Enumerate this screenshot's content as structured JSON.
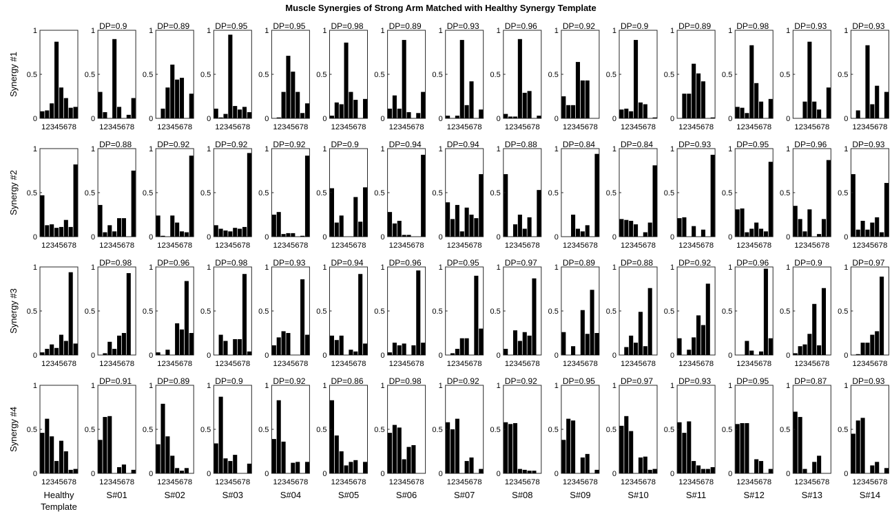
{
  "chart_data": {
    "type": "bar",
    "title": "Muscle Synergies of Strong Arm Matched with Healthy Synergy Template",
    "ylim": [
      0,
      1
    ],
    "yticks": [
      "0",
      "0.5",
      "1"
    ],
    "xtick_label": "12345678",
    "categories": [
      "1",
      "2",
      "3",
      "4",
      "5",
      "6",
      "7",
      "8"
    ],
    "rows": [
      "Synergy #1",
      "Synergy #2",
      "Synergy #3",
      "Synergy #4"
    ],
    "columns": [
      {
        "label_lines": [
          "Healthy",
          "Template"
        ]
      },
      {
        "label_lines": [
          "S#01"
        ]
      },
      {
        "label_lines": [
          "S#02"
        ]
      },
      {
        "label_lines": [
          "S#03"
        ]
      },
      {
        "label_lines": [
          "S#04"
        ]
      },
      {
        "label_lines": [
          "S#05"
        ]
      },
      {
        "label_lines": [
          "S#06"
        ]
      },
      {
        "label_lines": [
          "S#07"
        ]
      },
      {
        "label_lines": [
          "S#08"
        ]
      },
      {
        "label_lines": [
          "S#09"
        ]
      },
      {
        "label_lines": [
          "S#10"
        ]
      },
      {
        "label_lines": [
          "S#11"
        ]
      },
      {
        "label_lines": [
          "S#12"
        ]
      },
      {
        "label_lines": [
          "S#13"
        ]
      },
      {
        "label_lines": [
          "S#14"
        ]
      }
    ],
    "dp": [
      [
        "",
        "DP=0.9",
        "DP=0.89",
        "DP=0.95",
        "DP=0.95",
        "DP=0.98",
        "DP=0.89",
        "DP=0.93",
        "DP=0.96",
        "DP=0.92",
        "DP=0.9",
        "DP=0.89",
        "DP=0.98",
        "DP=0.93",
        "DP=0.93"
      ],
      [
        "",
        "DP=0.88",
        "DP=0.92",
        "DP=0.92",
        "DP=0.92",
        "DP=0.9",
        "DP=0.94",
        "DP=0.94",
        "DP=0.88",
        "DP=0.84",
        "DP=0.84",
        "DP=0.93",
        "DP=0.95",
        "DP=0.96",
        "DP=0.93"
      ],
      [
        "",
        "DP=0.98",
        "DP=0.96",
        "DP=0.98",
        "DP=0.93",
        "DP=0.94",
        "DP=0.96",
        "DP=0.95",
        "DP=0.97",
        "DP=0.89",
        "DP=0.88",
        "DP=0.92",
        "DP=0.96",
        "DP=0.9",
        "DP=0.97"
      ],
      [
        "",
        "DP=0.91",
        "DP=0.89",
        "DP=0.9",
        "DP=0.92",
        "DP=0.86",
        "DP=0.98",
        "DP=0.92",
        "DP=0.92",
        "DP=0.95",
        "DP=0.97",
        "DP=0.93",
        "DP=0.95",
        "DP=0.87",
        "DP=0.93"
      ]
    ],
    "values": [
      [
        [
          0.08,
          0.09,
          0.17,
          0.87,
          0.35,
          0.23,
          0.12,
          0.13
        ],
        [
          0.3,
          0.07,
          0.0,
          0.9,
          0.13,
          0.0,
          0.04,
          0.23
        ],
        [
          0.0,
          0.11,
          0.35,
          0.61,
          0.44,
          0.46,
          0.0,
          0.28
        ],
        [
          0.11,
          0.01,
          0.05,
          0.95,
          0.14,
          0.1,
          0.13,
          0.07
        ],
        [
          0.0,
          0.01,
          0.3,
          0.71,
          0.53,
          0.3,
          0.06,
          0.17
        ],
        [
          0.03,
          0.18,
          0.16,
          0.86,
          0.3,
          0.21,
          0.0,
          0.22
        ],
        [
          0.11,
          0.26,
          0.11,
          0.89,
          0.07,
          0.0,
          0.06,
          0.3
        ],
        [
          0.03,
          0.0,
          0.03,
          0.89,
          0.15,
          0.42,
          0.0,
          0.1
        ],
        [
          0.05,
          0.02,
          0.02,
          0.9,
          0.29,
          0.31,
          0.0,
          0.03
        ],
        [
          0.25,
          0.15,
          0.15,
          0.64,
          0.43,
          0.43,
          0.0,
          0.0
        ],
        [
          0.1,
          0.11,
          0.08,
          0.89,
          0.18,
          0.16,
          0.0,
          0.01
        ],
        [
          0.0,
          0.28,
          0.28,
          0.62,
          0.51,
          0.42,
          0.0,
          0.01
        ],
        [
          0.13,
          0.12,
          0.06,
          0.83,
          0.4,
          0.19,
          0.0,
          0.22
        ],
        [
          0.0,
          0.0,
          0.19,
          0.87,
          0.19,
          0.1,
          0.0,
          0.35
        ],
        [
          0.0,
          0.09,
          0.0,
          0.83,
          0.16,
          0.37,
          0.0,
          0.3
        ]
      ],
      [
        [
          0.47,
          0.13,
          0.14,
          0.1,
          0.11,
          0.19,
          0.11,
          0.82
        ],
        [
          0.36,
          0.05,
          0.13,
          0.06,
          0.21,
          0.21,
          0.0,
          0.75
        ],
        [
          0.24,
          0.01,
          0.0,
          0.24,
          0.16,
          0.06,
          0.05,
          0.92
        ],
        [
          0.13,
          0.09,
          0.07,
          0.06,
          0.1,
          0.09,
          0.11,
          0.95
        ],
        [
          0.25,
          0.28,
          0.03,
          0.04,
          0.04,
          0.0,
          0.01,
          0.92
        ],
        [
          0.55,
          0.16,
          0.24,
          0.0,
          0.0,
          0.45,
          0.17,
          0.56
        ],
        [
          0.28,
          0.15,
          0.18,
          0.02,
          0.02,
          0.0,
          0.0,
          0.93
        ],
        [
          0.39,
          0.2,
          0.36,
          0.06,
          0.33,
          0.25,
          0.21,
          0.71
        ],
        [
          0.71,
          0.0,
          0.14,
          0.25,
          0.09,
          0.22,
          0.0,
          0.53
        ],
        [
          0.0,
          0.0,
          0.25,
          0.09,
          0.06,
          0.13,
          0.0,
          0.94
        ],
        [
          0.2,
          0.19,
          0.18,
          0.14,
          0.0,
          0.05,
          0.16,
          0.81
        ],
        [
          0.21,
          0.22,
          0.0,
          0.12,
          0.0,
          0.08,
          0.0,
          0.93
        ],
        [
          0.31,
          0.32,
          0.05,
          0.09,
          0.16,
          0.09,
          0.06,
          0.85
        ],
        [
          0.35,
          0.2,
          0.06,
          0.31,
          0.0,
          0.03,
          0.2,
          0.87
        ],
        [
          0.71,
          0.08,
          0.18,
          0.08,
          0.16,
          0.22,
          0.05,
          0.61
        ]
      ],
      [
        [
          0.03,
          0.07,
          0.12,
          0.08,
          0.23,
          0.16,
          0.94,
          0.13
        ],
        [
          0.0,
          0.02,
          0.15,
          0.07,
          0.22,
          0.25,
          0.93,
          0.0
        ],
        [
          0.03,
          0.0,
          0.06,
          0.0,
          0.36,
          0.29,
          0.84,
          0.25
        ],
        [
          0.0,
          0.23,
          0.16,
          0.0,
          0.18,
          0.18,
          0.92,
          0.04
        ],
        [
          0.11,
          0.2,
          0.27,
          0.25,
          0.0,
          0.0,
          0.86,
          0.23
        ],
        [
          0.22,
          0.17,
          0.22,
          0.0,
          0.06,
          0.04,
          0.92,
          0.13
        ],
        [
          0.03,
          0.14,
          0.11,
          0.13,
          0.0,
          0.11,
          0.96,
          0.14
        ],
        [
          0.0,
          0.02,
          0.07,
          0.19,
          0.19,
          0.0,
          0.9,
          0.3
        ],
        [
          0.07,
          0.0,
          0.28,
          0.16,
          0.26,
          0.22,
          0.87,
          0.0
        ],
        [
          0.26,
          0.0,
          0.1,
          0.0,
          0.51,
          0.24,
          0.74,
          0.25
        ],
        [
          0.0,
          0.09,
          0.22,
          0.14,
          0.49,
          0.1,
          0.76,
          0.0
        ],
        [
          0.19,
          0.0,
          0.06,
          0.2,
          0.45,
          0.34,
          0.81,
          0.0
        ],
        [
          0.0,
          0.0,
          0.16,
          0.05,
          0.0,
          0.04,
          0.98,
          0.19
        ],
        [
          0.02,
          0.1,
          0.12,
          0.24,
          0.58,
          0.11,
          0.76,
          0.0
        ],
        [
          0.0,
          0.01,
          0.14,
          0.14,
          0.23,
          0.27,
          0.89,
          0.0
        ]
      ],
      [
        [
          0.46,
          0.62,
          0.42,
          0.14,
          0.37,
          0.25,
          0.04,
          0.05
        ],
        [
          0.38,
          0.64,
          0.65,
          0.0,
          0.07,
          0.1,
          0.0,
          0.04
        ],
        [
          0.33,
          0.79,
          0.42,
          0.2,
          0.06,
          0.03,
          0.06,
          0.0
        ],
        [
          0.34,
          0.87,
          0.17,
          0.14,
          0.21,
          0.0,
          0.0,
          0.11
        ],
        [
          0.39,
          0.83,
          0.36,
          0.0,
          0.12,
          0.13,
          0.0,
          0.13
        ],
        [
          0.83,
          0.43,
          0.25,
          0.09,
          0.13,
          0.15,
          0.0,
          0.13
        ],
        [
          0.46,
          0.55,
          0.52,
          0.16,
          0.3,
          0.32,
          0.0,
          0.0
        ],
        [
          0.58,
          0.5,
          0.62,
          0.0,
          0.14,
          0.18,
          0.0,
          0.05
        ],
        [
          0.58,
          0.56,
          0.57,
          0.05,
          0.04,
          0.03,
          0.03,
          0.0
        ],
        [
          0.38,
          0.62,
          0.6,
          0.0,
          0.18,
          0.22,
          0.0,
          0.04
        ],
        [
          0.54,
          0.65,
          0.48,
          0.0,
          0.18,
          0.19,
          0.04,
          0.05
        ],
        [
          0.58,
          0.46,
          0.59,
          0.14,
          0.09,
          0.05,
          0.05,
          0.07
        ],
        [
          0.56,
          0.57,
          0.57,
          0.0,
          0.16,
          0.14,
          0.0,
          0.05
        ],
        [
          0.7,
          0.64,
          0.05,
          0.0,
          0.13,
          0.2,
          0.0,
          0.0
        ],
        [
          0.45,
          0.6,
          0.63,
          0.0,
          0.09,
          0.13,
          0.0,
          0.06
        ]
      ]
    ]
  }
}
